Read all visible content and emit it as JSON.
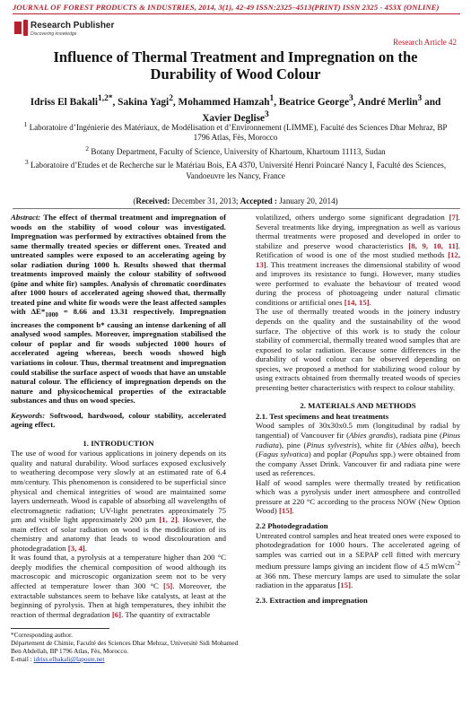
{
  "header": {
    "journal_line": "JOURNAL OF FOREST PRODUCTS & INDUSTRIES, 2014, 3(1), 42-49 ISSN:2325–4513(PRINT) ISSN 2325 - 453X (ONLINE)",
    "publisher_name": "Research Publisher",
    "publisher_tagline": "Discovering knowledge",
    "article_label": "Research Article  42"
  },
  "title": "Influence of Thermal Treatment and Impregnation on the Durability of Wood Colour",
  "authors": {
    "line1": "Idriss El Bakali",
    "line1_sup": "1,2*",
    "a2": ", Sakina Yagi",
    "a2_sup": "2",
    "a3": ", Mohammed Hamzah",
    "a3_sup": "1",
    "a4": ", Beatrice George",
    "a4_sup": "3",
    "a5": ", André Merlin",
    "a5_sup": "3",
    "a6": " and Xavier Deglise",
    "a6_sup": "3"
  },
  "affiliations": [
    {
      "sup": "1",
      "text": "Laboratoire d’Ingénierie des Matériaux, de Modélisation et d’Environnement (LIMME), Faculté des Sciences Dhar Mehraz, BP 1796 Atlas, Fès, Morocco"
    },
    {
      "sup": "2",
      "text": "Botany Department, Faculty of Science, University of Khartoum, Khartoum 11113, Sudan"
    },
    {
      "sup": "3",
      "text": "Laboratoire d’Etudes et de Recherche sur le Matériau Bois, EA 4370, Université Henri Poincaré Nancy I, Faculté des Sciences, Vandoeuvre les Nancy, France"
    }
  ],
  "dates": {
    "received_label": "Received:",
    "received": " December 31, 2013; ",
    "accepted_label": "Accepted :",
    "accepted": " January 20, 2014"
  },
  "abstract": {
    "label": "Abstract:",
    "text": " The effect of thermal treatment and impregnation of woods on the stability of wood colour was investigated. Impregnation was performed by extractives obtained from the same thermally treated species or different ones. Treated and untreated samples were exposed to an accelerating ageing by solar radiation during 1000 h. Results showed that thermal treatments improved mainly the colour stability of softwood (pine and white fir) samples. Analysis of chromatic coordinates after 1000 hours of accelerated ageing showed that, thermally treated pine and white fir woods were the least affected samples with ΔE*",
    "sub": "1000",
    "text2": " = 8.66 and 13.31 respectively. Impregnation increases the component b* causing an intense darkening of all analysed wood samples. Moreover, impregnation stabilised the colour of poplar and fir woods subjected 1000 hours of accelerated ageing whereas, beech woods showed high variations in colour. Thus, thermal treatment and impregnation could stabilise the surface aspect of woods that have an unstable natural colour. The efficiency of impregnation depends on the nature and physicochemical properties of the extractable substances and thus on wood species."
  },
  "keywords": {
    "label": "Keywords:",
    "text": " Softwood, hardwood, colour stability, accelerated ageing effect."
  },
  "intro": {
    "heading": "1. INTRODUCTION",
    "p1a": "The use of wood for various applications in joinery depends on its quality and natural durability. Wood surfaces exposed exclusively to weathering decompose very slowly at an estimated rate of 6.4 mm/century. This phenomenon is considered to be superficial since physical and chemical integrities of wood are maintained some layers underneath. Wood is capable of absorbing all wavelengths of electromagnetic radiation; UV-light penetrates approximately 75 µm and visible light approximately 200 µm ",
    "c1": "[1, 2]",
    "p1b": ". However, the main effect of solar radiation on wood is the modification of its chemistry and anatomy that leads to wood discolouration and photodegradation ",
    "c2": "[3, 4]",
    "p1c": ".",
    "p2a": "It was found that, a pyrolysis at a temperature higher than 200 °C deeply modifies the chemical composition of wood although its macroscopic and microscopic organization seem not to be very affected at temperature lower than 300 °C ",
    "c3": "[5]",
    "p2b": ". Moreover, the extractable substances seem to behave like catalysts, at least at the beginning of pyrolysis. Then at high temperatures, they inhibit the reaction of thermal degradation ",
    "c4": "[6]",
    "p2c": ". The quantity of extractable"
  },
  "right": {
    "p1a": "volatilized, others undergo some significant degradation ",
    "c1": "[7]",
    "p1b": ". Several treatments like drying, impregnation as well as various thermal treatments were proposed and developed in order to stabilize and preserve wood characteristics ",
    "c2": "[8, 9, 10, 11]",
    "p1c": ". Retification of wood is one of the most studied methods ",
    "c3": "[12, 13]",
    "p1d": ". This treatment increases the dimensional stability of wood and improves its resistance to fungi. However, many studies were performed to evaluate the behaviour of treated wood during the process of photoageing under natural climatic conditions or artificial ones ",
    "c4": "[14, 15]",
    "p1e": ".",
    "p2": "The use of thermally treated woods in the joinery industry depends on the quality and the sustainability of the wood surface. The objective of this work is to study the colour stability of commercial, thermally treated wood samples that are exposed to solar radiation. Because some differences in the durability of wood colour can be observed depending on species, we proposed a method for stabilizing wood colour by using extracts obtained from thermally treated woods of species presenting better characteristics with respect to colour stability.",
    "mm_heading": "2. MATERIALS AND METHODS",
    "s21_heading": "2.1. Test specimens and heat treatments",
    "s21a": "Wood samples of 30x30x0.5 mm (longitudinal by radial by tangential) of Vancouver fir (",
    "s21_i1": "Abies grandis",
    "s21b": "), radiata pine (",
    "s21_i2": "Pinus radiata",
    "s21c": "), pine (",
    "s21_i3": "Pinus sylvestris",
    "s21d": "), white fir (",
    "s21_i4": "Abies alba",
    "s21e": "), beech (",
    "s21_i5": "Fagus sylvatica",
    "s21f": ") and poplar (",
    "s21_i6": "Populus",
    "s21g": " spp.) were obtained from the company Asset Drink. Vancouver fir and radiata pine were used as references.",
    "s21h": "Half of wood samples were thermally treated by retification which was a pyrolysis under inert atmosphere and controlled pressure at 220 °C according to the process NOW (New Option Wood) ",
    "c5": "[15]",
    "s21i": ".",
    "s22_heading": "2.2 Photodegradation",
    "s22a": "Untreated control samples and heat treated ones were exposed to photodegradation for 1000 hours. The accelerated ageing of samples was carried out in a SEPAP cell fitted with mercury medium pressure lamps giving an incident flow of 4.5 mWcm",
    "s22_sup": "-2",
    "s22b": " at 366 nm. These mercury lamps are used to simulate the solar radiation in the apparatus ",
    "c6": "[15]",
    "s22c": ".",
    "s23_heading": "2.3. Extraction and impregnation"
  },
  "footnote": {
    "line1": "*Corresponding author.",
    "line2": "Département de Chimie, Faculté des Sciences Dhar Mehraz, Université Sidi Mohamed Ben Abdellah, BP 1796 Atlas, Fès, Morocco.",
    "email_label": "E-mail : ",
    "email": "idriss.elbakali@laposte.net"
  },
  "colors": {
    "accent": "#b8202e",
    "link": "#1a3ca8"
  }
}
